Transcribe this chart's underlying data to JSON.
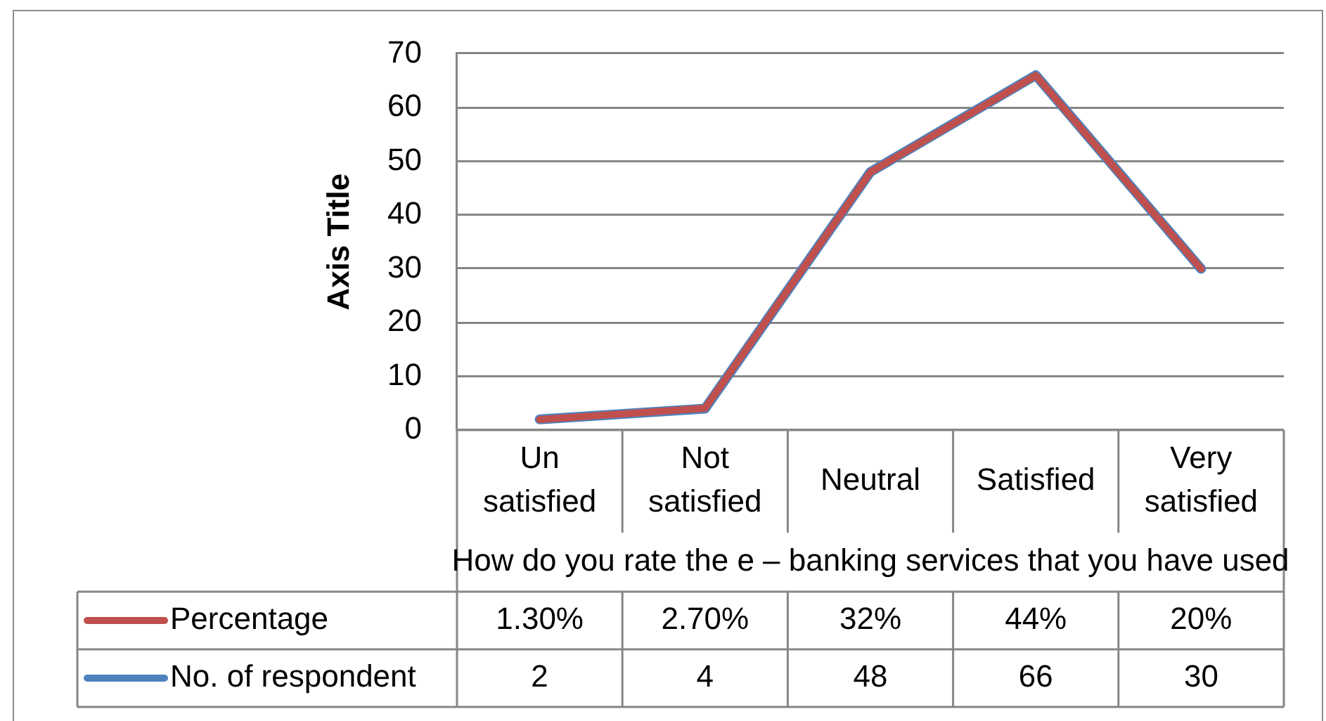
{
  "chart_data": {
    "type": "line",
    "ylabel": "Axis Title",
    "xlabel": "How do you rate the e – banking services that you have used",
    "categories": [
      "Un satisfied",
      "Not satisfied",
      "Neutral",
      "Satisfied",
      "Very satisfied"
    ],
    "series": [
      {
        "name": "Percentage",
        "color": "#c0504d",
        "axis": "y2",
        "values": [
          1.3,
          2.7,
          32,
          44,
          20
        ],
        "value_labels": [
          "1.30%",
          "2.70%",
          "32%",
          "44%",
          "20%"
        ]
      },
      {
        "name": "No. of respondent",
        "color": "#4f81bd",
        "values": [
          2,
          4,
          48,
          66,
          30
        ],
        "value_labels": [
          "2",
          "4",
          "48",
          "66",
          "30"
        ]
      }
    ],
    "ylim": [
      0,
      70
    ],
    "yticks": [
      0,
      10,
      20,
      30,
      40,
      50,
      60,
      70
    ],
    "y2lim": [
      0,
      46.7
    ],
    "grid": "y",
    "legend": "bottom"
  }
}
